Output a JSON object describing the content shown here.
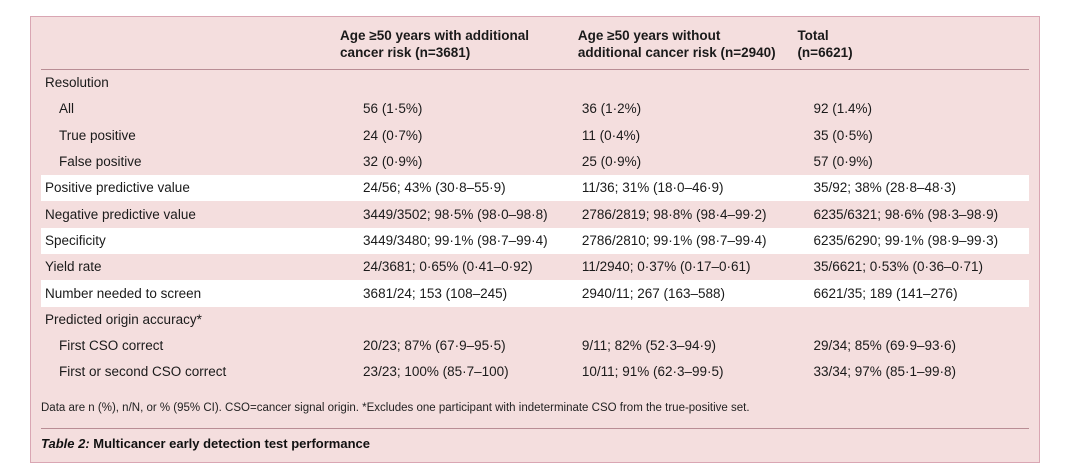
{
  "headers": [
    "",
    "Age ≥50 years with additional cancer risk (n=3681)",
    "Age ≥50 years without additional cancer risk (n=2940)",
    "Total (n=6621)"
  ],
  "header_lines": [
    [
      "",
      ""
    ],
    [
      "Age ≥50 years with additional",
      "cancer risk (n=3681)"
    ],
    [
      "Age ≥50 years without",
      "additional cancer risk (n=2940)"
    ],
    [
      "Total",
      "(n=6621)"
    ]
  ],
  "rows": [
    {
      "label": "Resolution",
      "cells": [
        "",
        "",
        ""
      ],
      "indent": false,
      "white": false
    },
    {
      "label": "All",
      "cells": [
        "56 (1·5%)",
        "36 (1·2%)",
        "92 (1.4%)"
      ],
      "indent": true,
      "white": false
    },
    {
      "label": "True positive",
      "cells": [
        "24 (0·7%)",
        "11 (0·4%)",
        "35 (0·5%)"
      ],
      "indent": true,
      "white": false
    },
    {
      "label": "False positive",
      "cells": [
        "32 (0·9%)",
        "25 (0·9%)",
        "57 (0·9%)"
      ],
      "indent": true,
      "white": false
    },
    {
      "label": "Positive predictive value",
      "cells": [
        "24/56; 43% (30·8–55·9)",
        "11/36; 31% (18·0–46·9)",
        "35/92; 38% (28·8–48·3)"
      ],
      "indent": false,
      "white": true
    },
    {
      "label": "Negative predictive value",
      "cells": [
        "3449/3502; 98·5% (98·0–98·8)",
        "2786/2819; 98·8% (98·4–99·2)",
        "6235/6321; 98·6% (98·3–98·9)"
      ],
      "indent": false,
      "white": false
    },
    {
      "label": "Specificity",
      "cells": [
        "3449/3480; 99·1% (98·7–99·4)",
        "2786/2810; 99·1% (98·7–99·4)",
        "6235/6290; 99·1% (98·9–99·3)"
      ],
      "indent": false,
      "white": true
    },
    {
      "label": "Yield rate",
      "cells": [
        "24/3681; 0·65% (0·41–0·92)",
        "11/2940; 0·37% (0·17–0·61)",
        "35/6621; 0·53% (0·36–0·71)"
      ],
      "indent": false,
      "white": false
    },
    {
      "label": "Number needed to screen",
      "cells": [
        "3681/24; 153 (108–245)",
        "2940/11; 267 (163–588)",
        "6621/35; 189 (141–276)"
      ],
      "indent": false,
      "white": true
    },
    {
      "label": "Predicted origin accuracy*",
      "cells": [
        "",
        "",
        ""
      ],
      "indent": false,
      "white": false
    },
    {
      "label": "First CSO correct",
      "cells": [
        "20/23; 87% (67·9–95·5)",
        "9/11; 82% (52·3–94·9)",
        "29/34; 85% (69·9–93·6)"
      ],
      "indent": true,
      "white": false
    },
    {
      "label": "First or second CSO correct",
      "cells": [
        "23/23; 100% (85·7–100)",
        "10/11; 91% (62·3–99·5)",
        "33/34; 97% (85·1–99·8)"
      ],
      "indent": true,
      "white": false
    }
  ],
  "footnote": "Data are n (%), n/N, or % (95% CI). CSO=cancer signal origin. *Excludes one participant with indeterminate CSO from the true-positive set.",
  "caption": {
    "label": "Table 2:",
    "title": " Multicancer early detection test performance"
  },
  "colors": {
    "background": "#f4dede",
    "border": "#d9a6b3",
    "highlight_row": "#ffffff"
  }
}
